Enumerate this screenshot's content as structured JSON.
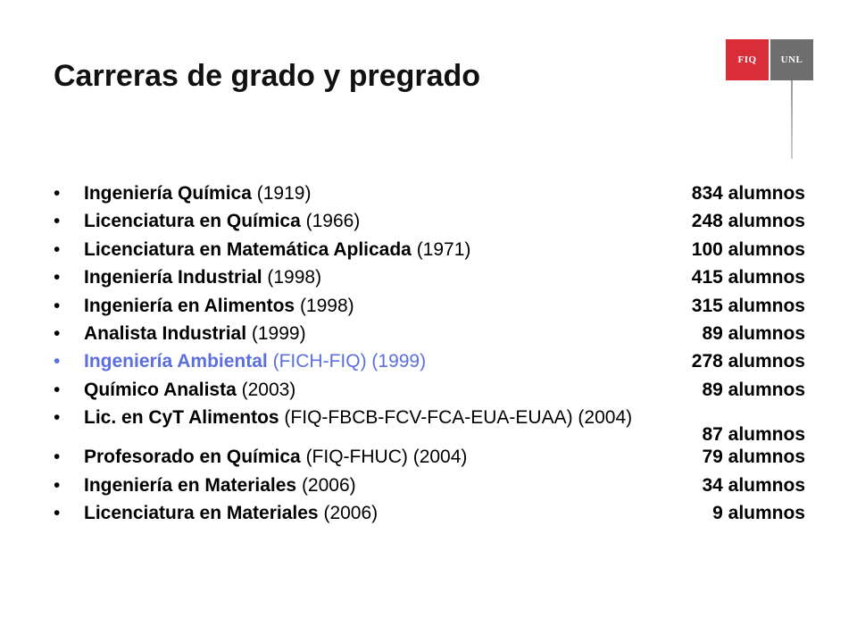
{
  "logos": {
    "fiq": "FIQ",
    "unl": "UNL"
  },
  "title": "Carreras de grado y pregrado",
  "bullet": "•",
  "colors": {
    "fiq_red": "#d92d3a",
    "unl_gray": "#6e6e6e",
    "accent_blue": "#5b6fe0"
  },
  "careers": [
    {
      "name": "Ingeniería Química",
      "detail": " (1919)",
      "count": "834 alumnos"
    },
    {
      "name": "Licenciatura en Química",
      "detail": " (1966)",
      "count": "248 alumnos"
    },
    {
      "name": "Licenciatura en Matemática Aplicada",
      "detail": " (1971)",
      "count": "100 alumnos"
    },
    {
      "name": "Ingeniería Industrial",
      "detail": " (1998)",
      "count": "415 alumnos"
    },
    {
      "name": "Ingeniería en Alimentos",
      "detail": " (1998)",
      "count": "315 alumnos"
    },
    {
      "name": "Analista Industrial",
      "detail": " (1999)",
      "count": "89 alumnos"
    },
    {
      "name": "Ingeniería Ambiental",
      "detail": " (FICH-FIQ) (1999)",
      "count": "278 alumnos"
    },
    {
      "name": "Químico Analista",
      "detail": " (2003)",
      "count": "89 alumnos"
    },
    {
      "name": "Lic. en CyT Alimentos",
      "detail": " (FIQ-FBCB-FCV-FCA-EUA-EUAA) (2004)",
      "count": "87 alumnos"
    },
    {
      "name": "Profesorado en Química",
      "detail": " (FIQ-FHUC) (2004)",
      "count": "79 alumnos"
    },
    {
      "name": "Ingeniería en Materiales",
      "detail": " (2006)",
      "count": "34 alumnos"
    },
    {
      "name": "Licenciatura en Materiales",
      "detail": " (2006)",
      "count": "9 alumnos"
    }
  ]
}
